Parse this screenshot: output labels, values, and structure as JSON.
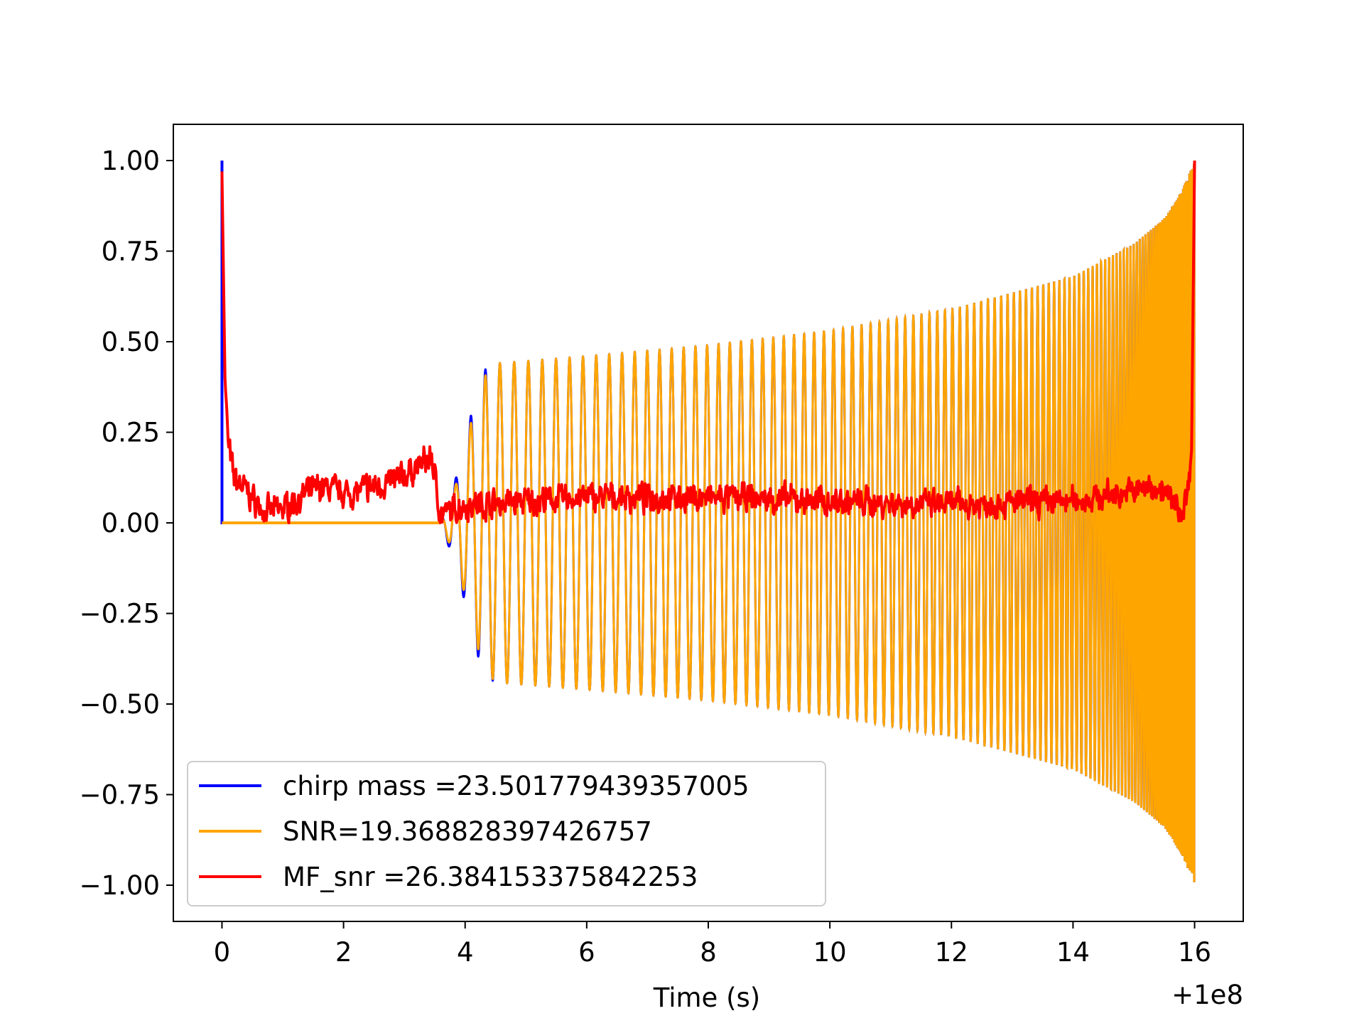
{
  "chart_data": {
    "type": "line",
    "title": "",
    "xlabel": "Time (s)",
    "ylabel": "",
    "x_offset_label": "+1e8",
    "xlim": [
      -0.8,
      16.8
    ],
    "ylim": [
      -1.1,
      1.1
    ],
    "xticks": [
      0,
      2,
      4,
      6,
      8,
      10,
      12,
      14,
      16
    ],
    "xtick_labels": [
      "0",
      "2",
      "4",
      "6",
      "8",
      "10",
      "12",
      "14",
      "16"
    ],
    "yticks": [
      1.0,
      0.75,
      0.5,
      0.25,
      0.0,
      -0.25,
      -0.5,
      -0.75,
      -1.0
    ],
    "ytick_labels": [
      "1.00",
      "0.75",
      "0.50",
      "0.25",
      "0.00",
      "−0.25",
      "−0.50",
      "−0.75",
      "−1.00"
    ],
    "grid": false,
    "legend_position": "bottom-left",
    "series": [
      {
        "name": "chirp mass =23.501779439357005",
        "color": "#0000ff",
        "x": [
          0.0,
          0.0,
          0.02,
          3.6,
          3.7,
          3.9,
          4.1,
          4.3,
          4.5,
          6,
          8,
          10,
          12,
          14,
          15,
          15.5,
          15.8,
          16.0
        ],
        "envelope": [
          1.0,
          1.0,
          0.0,
          0.0,
          0.05,
          0.15,
          0.3,
          0.42,
          0.44,
          0.46,
          0.49,
          0.53,
          0.59,
          0.68,
          0.77,
          0.84,
          0.92,
          1.0
        ]
      },
      {
        "name": "SNR=19.368828397426757",
        "color": "#ffa500",
        "x": [
          0.0,
          3.6,
          3.7,
          3.9,
          4.1,
          4.3,
          4.5,
          6,
          8,
          10,
          12,
          14,
          15,
          15.5,
          15.8,
          16.0
        ],
        "envelope": [
          0.0,
          0.0,
          0.04,
          0.13,
          0.28,
          0.4,
          0.44,
          0.46,
          0.49,
          0.53,
          0.59,
          0.68,
          0.77,
          0.84,
          0.92,
          1.0
        ]
      },
      {
        "name": "MF_snr =26.384153375842253",
        "color": "#ff0000",
        "x": [
          0.0,
          0.05,
          0.1,
          0.2,
          0.4,
          0.7,
          1.0,
          1.6,
          2.1,
          2.9,
          3.45,
          3.6,
          4.0,
          5.0,
          6.0,
          8.0,
          10.0,
          12.0,
          14.0,
          15.4,
          15.8,
          15.9,
          15.95,
          16.0
        ],
        "values": [
          0.97,
          0.4,
          0.22,
          0.12,
          0.09,
          0.03,
          0.04,
          0.1,
          0.08,
          0.12,
          0.18,
          0.02,
          0.05,
          0.06,
          0.07,
          0.07,
          0.06,
          0.05,
          0.06,
          0.1,
          0.03,
          0.1,
          0.2,
          1.0
        ]
      }
    ]
  }
}
